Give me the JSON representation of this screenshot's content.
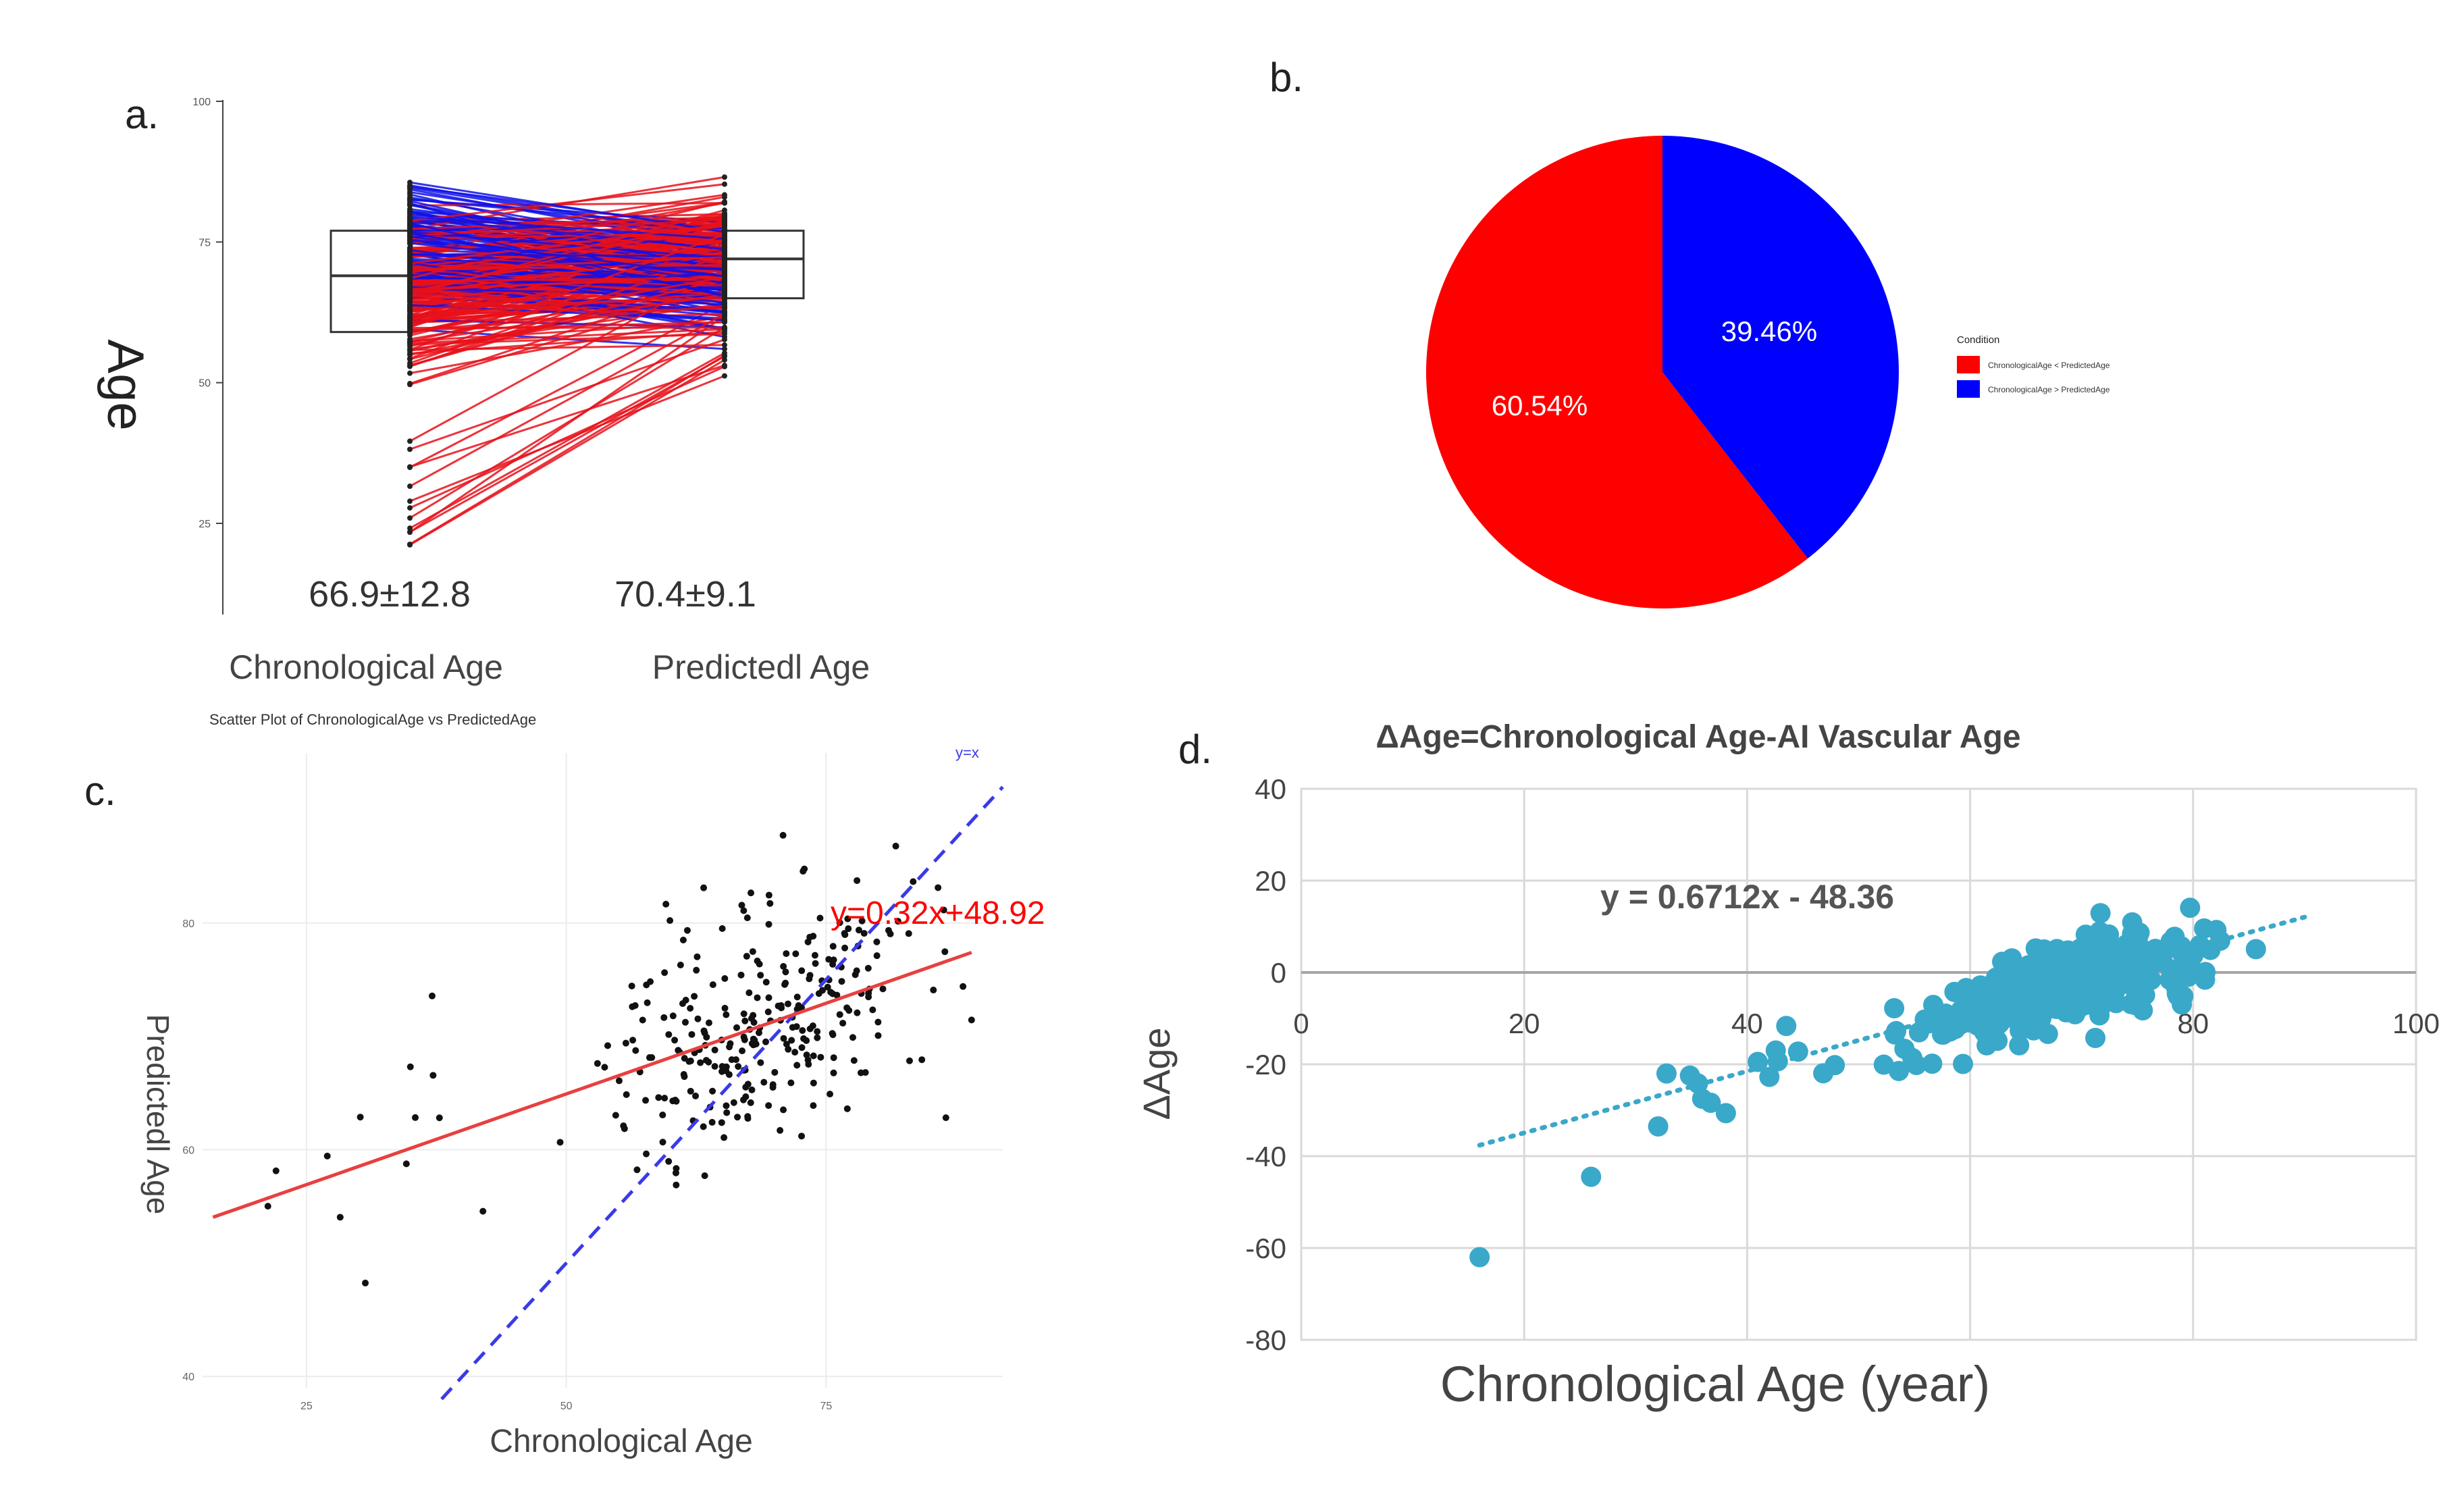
{
  "panel_labels": {
    "a": "a.",
    "b": "b.",
    "c": "c.",
    "d": "d."
  },
  "chart_data": [
    {
      "id": "a",
      "type": "box-paired",
      "title": "",
      "ylabel": "Age",
      "ylim": [
        10,
        100
      ],
      "yticks": [
        25,
        50,
        75,
        100
      ],
      "categories": [
        "Chronological Age",
        "Predictedl Age"
      ],
      "stats_text": [
        "66.9±12.8",
        "70.4±9.1"
      ],
      "boxes": [
        {
          "name": "Chronological Age",
          "q1": 59,
          "median": 69,
          "q3": 77
        },
        {
          "name": "Predictedl Age",
          "q1": 65,
          "median": 72,
          "q3": 77
        }
      ],
      "series_colors": {
        "increase": "#e8101a",
        "decrease": "#1010e8"
      },
      "n_pairs_approx": 294
    },
    {
      "id": "b",
      "type": "pie",
      "title": "",
      "slices": [
        {
          "label": "ChronologicalAge < PredictedAge",
          "value": 60.54,
          "text": "60.54%",
          "color": "#ff0000"
        },
        {
          "label": "ChronologicalAge > PredictedAge",
          "value": 39.46,
          "text": "39.46%",
          "color": "#0000ff"
        }
      ],
      "legend_title": "Condition",
      "legend_placement": "right"
    },
    {
      "id": "c",
      "type": "scatter",
      "title": "Scatter Plot of ChronologicalAge vs PredictedAge",
      "xlabel": "Chronological Age",
      "ylabel": "Predictedl Age",
      "xlim": [
        15,
        92
      ],
      "ylim": [
        39,
        95
      ],
      "xticks": [
        25,
        50,
        75
      ],
      "yticks": [
        40,
        60,
        80
      ],
      "fit_label": "y=0.32x+48.92",
      "fit": {
        "slope": 0.32,
        "intercept": 48.92,
        "color": "#e84040"
      },
      "identity_label": "y=x",
      "identity_color": "#3a3ae8",
      "point_color": "#111111",
      "n_points_approx": 294
    },
    {
      "id": "d",
      "type": "scatter",
      "title": "ΔAge=Chronological Age-AI Vascular Age",
      "xlabel": "Chronological Age (year)",
      "ylabel": "ΔAge",
      "xlim": [
        0,
        100
      ],
      "ylim": [
        -80,
        40
      ],
      "xticks": [
        0,
        20,
        40,
        60,
        80,
        100
      ],
      "yticks": [
        -80,
        -60,
        -40,
        -20,
        0,
        20,
        40
      ],
      "trend_label": "y = 0.6712x - 48.36",
      "trend": {
        "slope": 0.6712,
        "intercept": -48.36,
        "x_from": 16,
        "x_to": 90
      },
      "point_color": "#3aa8c9",
      "n_points_approx": 294
    }
  ]
}
